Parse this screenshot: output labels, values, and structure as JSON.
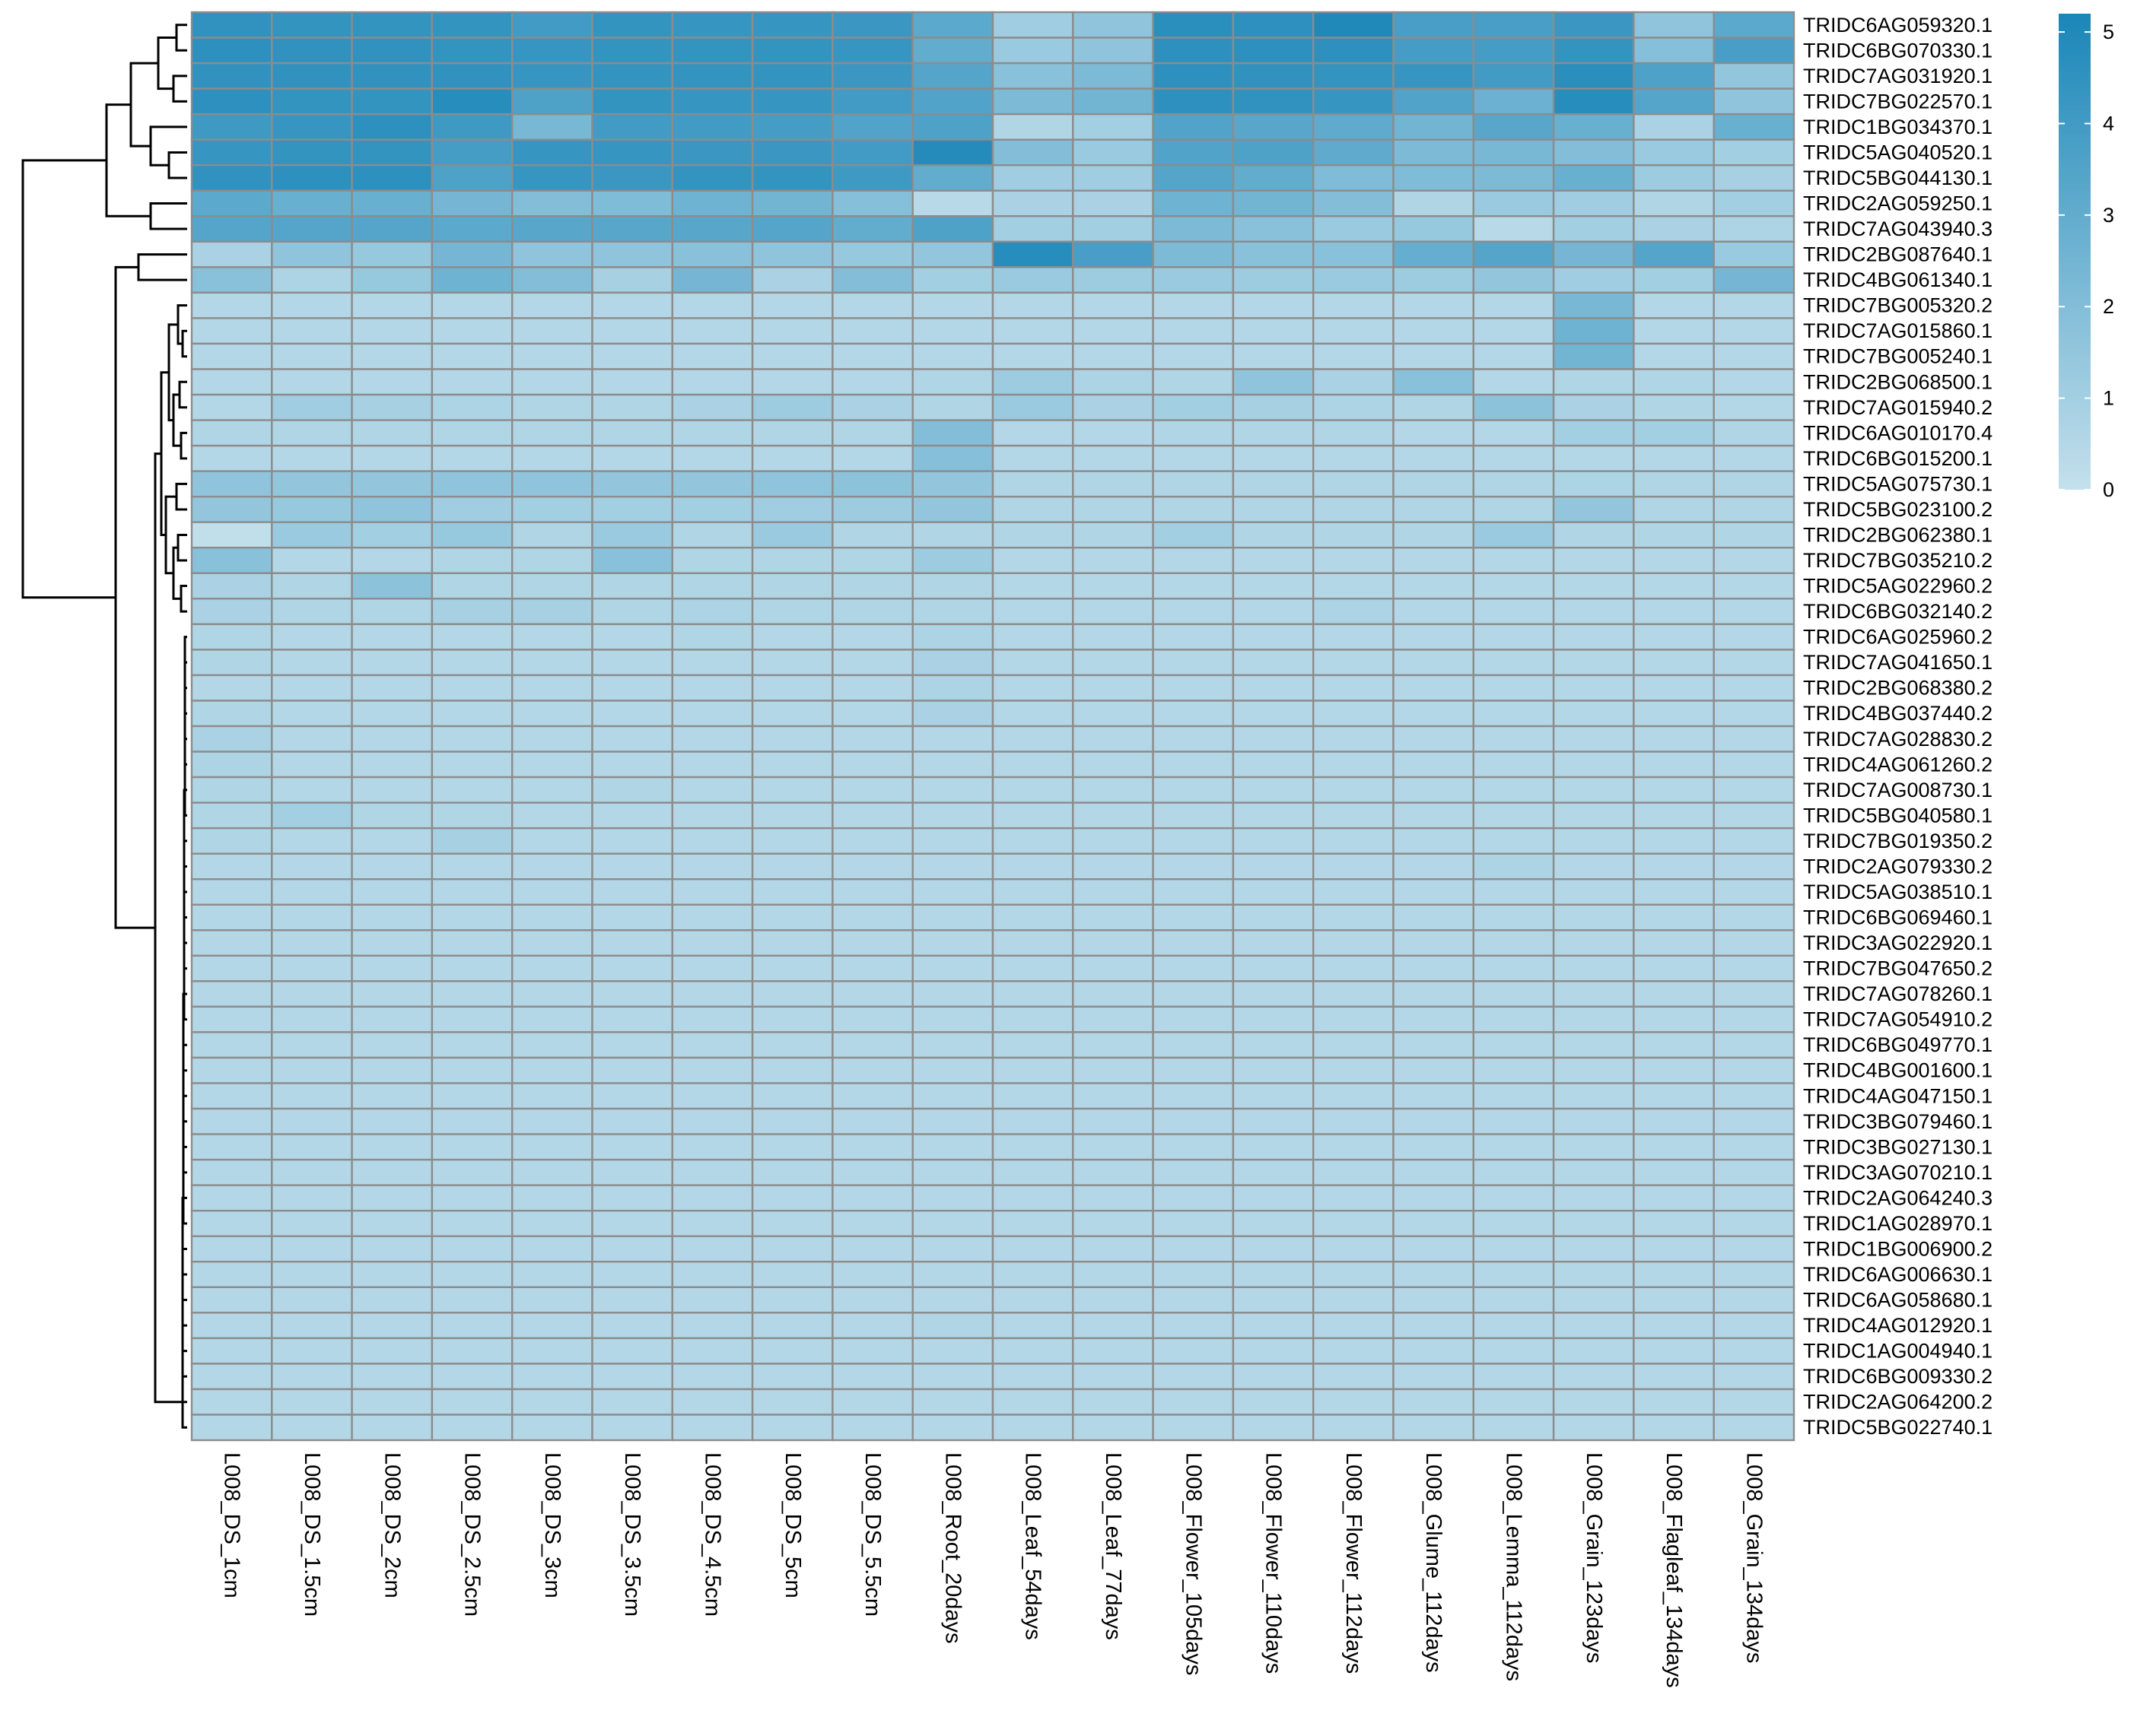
{
  "chart_data": {
    "type": "heatmap",
    "title": "",
    "xlabel": "",
    "ylabel": "",
    "columns": [
      "L008_DS_1cm",
      "L008_DS_1.5cm",
      "L008_DS_2cm",
      "L008_DS_2.5cm",
      "L008_DS_3cm",
      "L008_DS_3.5cm",
      "L008_DS_4.5cm",
      "L008_DS_5cm",
      "L008_DS_5.5cm",
      "L008_Root_20days",
      "L008_Leaf_54days",
      "L008_Leaf_77days",
      "L008_Flower_105days",
      "L008_Flower_110days",
      "L008_Flower_112days",
      "L008_Glume_112days",
      "L008_Lemma_112days",
      "L008_Grain_123days",
      "L008_Flagleaf_134days",
      "L008_Grain_134days"
    ],
    "rows": [
      "TRIDC6AG059320.1",
      "TRIDC6BG070330.1",
      "TRIDC7AG031920.1",
      "TRIDC7BG022570.1",
      "TRIDC1BG034370.1",
      "TRIDC5AG040520.1",
      "TRIDC5BG044130.1",
      "TRIDC2AG059250.1",
      "TRIDC7AG043940.3",
      "TRIDC2BG087640.1",
      "TRIDC4BG061340.1",
      "TRIDC7BG005320.2",
      "TRIDC7AG015860.1",
      "TRIDC7BG005240.1",
      "TRIDC2BG068500.1",
      "TRIDC7AG015940.2",
      "TRIDC6AG010170.4",
      "TRIDC6BG015200.1",
      "TRIDC5AG075730.1",
      "TRIDC5BG023100.2",
      "TRIDC2BG062380.1",
      "TRIDC7BG035210.2",
      "TRIDC5AG022960.2",
      "TRIDC6BG032140.2",
      "TRIDC6AG025960.2",
      "TRIDC7AG041650.1",
      "TRIDC2BG068380.2",
      "TRIDC4BG037440.2",
      "TRIDC7AG028830.2",
      "TRIDC4AG061260.2",
      "TRIDC7AG008730.1",
      "TRIDC5BG040580.1",
      "TRIDC7BG019350.2",
      "TRIDC2AG079330.2",
      "TRIDC5AG038510.1",
      "TRIDC6BG069460.1",
      "TRIDC3AG022920.1",
      "TRIDC7BG047650.2",
      "TRIDC7AG078260.1",
      "TRIDC7AG054910.2",
      "TRIDC6BG049770.1",
      "TRIDC4BG001600.1",
      "TRIDC4AG047150.1",
      "TRIDC3BG079460.1",
      "TRIDC3BG027130.1",
      "TRIDC3AG070210.1",
      "TRIDC2AG064240.3",
      "TRIDC1AG028970.1",
      "TRIDC1BG006900.2",
      "TRIDC6AG006630.1",
      "TRIDC6AG058680.1",
      "TRIDC4AG012920.1",
      "TRIDC1AG004940.1",
      "TRIDC6BG009330.2",
      "TRIDC2AG064200.2",
      "TRIDC5BG022740.1"
    ],
    "values": [
      [
        4.5,
        4.4,
        4.4,
        4.4,
        4.0,
        4.4,
        4.3,
        4.3,
        4.2,
        3.2,
        1.1,
        1.6,
        4.7,
        4.6,
        5.0,
        3.8,
        3.8,
        4.2,
        1.6,
        3.2
      ],
      [
        4.6,
        4.5,
        4.5,
        4.4,
        4.3,
        4.4,
        4.4,
        4.4,
        4.3,
        3.0,
        1.3,
        1.6,
        4.6,
        4.6,
        4.6,
        3.9,
        3.9,
        4.4,
        1.9,
        3.8
      ],
      [
        4.5,
        4.5,
        4.5,
        4.5,
        4.3,
        4.4,
        4.4,
        4.4,
        4.2,
        3.4,
        1.8,
        2.2,
        4.6,
        4.5,
        4.4,
        4.3,
        4.0,
        4.7,
        3.6,
        1.5
      ],
      [
        4.6,
        4.4,
        4.4,
        4.8,
        3.6,
        4.4,
        4.3,
        4.3,
        4.0,
        3.5,
        2.2,
        2.5,
        4.6,
        4.5,
        4.3,
        3.5,
        2.7,
        4.8,
        3.4,
        1.6
      ],
      [
        4.1,
        4.3,
        4.6,
        4.1,
        2.3,
        4.0,
        4.0,
        3.9,
        3.5,
        3.6,
        0.6,
        1.0,
        3.5,
        3.3,
        3.1,
        2.5,
        3.3,
        2.8,
        0.8,
        2.8
      ],
      [
        4.3,
        4.4,
        4.4,
        3.9,
        4.3,
        4.3,
        4.2,
        4.2,
        4.0,
        4.9,
        2.0,
        1.3,
        3.5,
        3.6,
        3.1,
        2.2,
        2.3,
        2.0,
        1.3,
        1.0
      ],
      [
        4.5,
        4.6,
        4.6,
        3.6,
        4.3,
        4.2,
        4.4,
        4.4,
        4.1,
        3.0,
        1.1,
        1.1,
        3.4,
        3.0,
        2.1,
        2.1,
        2.2,
        2.8,
        1.2,
        0.9
      ],
      [
        3.2,
        2.8,
        2.8,
        2.4,
        2.0,
        2.1,
        2.6,
        2.5,
        1.9,
        0.4,
        0.8,
        0.8,
        2.6,
        2.5,
        2.0,
        0.6,
        1.3,
        1.1,
        0.6,
        1.0
      ],
      [
        3.4,
        3.4,
        3.4,
        3.2,
        3.3,
        3.3,
        3.3,
        3.4,
        3.0,
        3.6,
        1.0,
        1.0,
        2.2,
        1.8,
        1.3,
        1.4,
        0.4,
        1.0,
        0.8,
        0.7
      ],
      [
        0.8,
        1.6,
        1.4,
        2.4,
        1.6,
        1.6,
        1.8,
        1.6,
        1.4,
        1.5,
        4.8,
        3.8,
        2.2,
        1.8,
        1.8,
        2.9,
        3.4,
        2.4,
        3.4,
        1.3
      ],
      [
        1.8,
        0.7,
        1.4,
        2.6,
        2.0,
        0.9,
        2.4,
        0.8,
        2.0,
        1.0,
        1.3,
        1.2,
        1.3,
        1.2,
        1.3,
        1.2,
        1.5,
        1.1,
        1.0,
        2.4
      ],
      [
        0.5,
        0.5,
        0.5,
        0.5,
        0.5,
        0.5,
        0.5,
        0.5,
        0.5,
        0.5,
        0.5,
        0.5,
        0.5,
        0.5,
        0.5,
        0.5,
        0.5,
        2.3,
        0.5,
        0.5
      ],
      [
        0.5,
        0.5,
        0.5,
        0.5,
        0.5,
        0.5,
        0.5,
        0.5,
        0.5,
        0.5,
        0.5,
        0.5,
        0.5,
        0.5,
        0.5,
        0.5,
        0.5,
        2.6,
        0.5,
        0.5
      ],
      [
        0.5,
        0.5,
        0.5,
        0.5,
        0.5,
        0.5,
        0.5,
        0.5,
        0.5,
        0.5,
        0.5,
        0.5,
        0.5,
        0.5,
        0.5,
        0.5,
        0.5,
        2.5,
        0.5,
        0.5
      ],
      [
        0.5,
        0.5,
        0.5,
        0.5,
        0.5,
        0.5,
        0.5,
        0.5,
        0.5,
        0.6,
        1.2,
        0.7,
        0.6,
        1.6,
        0.8,
        1.8,
        0.5,
        0.6,
        0.6,
        0.5
      ],
      [
        0.5,
        1.1,
        0.9,
        0.7,
        0.6,
        0.6,
        0.8,
        1.2,
        0.8,
        0.6,
        1.3,
        0.8,
        1.0,
        0.9,
        0.7,
        0.6,
        1.7,
        0.8,
        0.6,
        0.5
      ],
      [
        0.6,
        0.6,
        0.6,
        0.6,
        0.6,
        0.6,
        0.6,
        0.6,
        0.6,
        2.0,
        0.5,
        0.5,
        0.6,
        0.6,
        0.6,
        0.5,
        0.5,
        1.0,
        1.0,
        0.6
      ],
      [
        0.5,
        0.5,
        0.5,
        0.5,
        0.5,
        0.5,
        0.5,
        0.5,
        0.5,
        1.9,
        0.5,
        0.5,
        0.5,
        0.5,
        0.5,
        0.5,
        0.5,
        0.5,
        0.5,
        0.5
      ],
      [
        1.6,
        1.5,
        1.5,
        1.6,
        1.6,
        1.5,
        1.5,
        1.6,
        1.7,
        1.5,
        0.6,
        0.6,
        0.6,
        0.6,
        0.6,
        0.6,
        0.6,
        0.7,
        0.6,
        0.6
      ],
      [
        1.5,
        1.4,
        1.6,
        1.1,
        1.0,
        1.0,
        1.0,
        1.1,
        1.2,
        1.5,
        0.6,
        0.6,
        0.6,
        0.6,
        0.6,
        0.6,
        0.6,
        1.5,
        0.6,
        0.6
      ],
      [
        0.1,
        1.3,
        1.0,
        1.4,
        0.6,
        1.3,
        0.6,
        1.3,
        0.6,
        0.6,
        0.6,
        0.6,
        1.0,
        0.6,
        0.6,
        0.6,
        1.3,
        0.6,
        0.6,
        0.6
      ],
      [
        1.8,
        0.5,
        0.5,
        0.6,
        0.6,
        1.8,
        0.6,
        0.6,
        0.6,
        1.2,
        0.5,
        0.5,
        0.5,
        0.5,
        0.5,
        0.5,
        0.5,
        0.5,
        0.5,
        0.5
      ],
      [
        0.8,
        0.6,
        1.7,
        0.6,
        0.6,
        0.6,
        0.6,
        0.6,
        0.6,
        0.6,
        0.5,
        0.5,
        0.5,
        0.5,
        0.5,
        0.5,
        0.5,
        0.5,
        0.5,
        0.5
      ],
      [
        0.8,
        0.6,
        0.6,
        0.9,
        0.9,
        0.6,
        0.7,
        0.6,
        0.6,
        0.6,
        0.5,
        0.5,
        0.5,
        0.5,
        0.7,
        0.5,
        0.5,
        0.5,
        0.5,
        0.5
      ],
      [
        0.6,
        0.5,
        0.5,
        0.5,
        0.5,
        0.5,
        0.6,
        0.5,
        0.5,
        0.7,
        0.5,
        0.5,
        0.5,
        0.5,
        0.5,
        0.5,
        0.5,
        0.5,
        0.5,
        0.5
      ],
      [
        0.6,
        0.5,
        0.5,
        0.5,
        0.5,
        0.5,
        0.5,
        0.5,
        0.5,
        0.8,
        0.5,
        0.5,
        0.5,
        0.5,
        0.5,
        0.5,
        0.5,
        0.5,
        0.5,
        0.5
      ],
      [
        0.5,
        0.5,
        0.5,
        0.5,
        0.5,
        0.5,
        0.5,
        0.5,
        0.5,
        0.7,
        0.5,
        0.5,
        0.5,
        0.5,
        0.5,
        0.5,
        0.5,
        0.5,
        0.5,
        0.5
      ],
      [
        0.6,
        0.5,
        0.5,
        0.5,
        0.5,
        0.5,
        0.5,
        0.5,
        0.5,
        0.8,
        0.5,
        0.5,
        0.5,
        0.5,
        0.5,
        0.5,
        0.5,
        0.5,
        0.5,
        0.5
      ],
      [
        0.8,
        0.5,
        0.5,
        0.5,
        0.5,
        0.5,
        0.5,
        0.5,
        0.5,
        0.5,
        0.5,
        0.5,
        0.5,
        0.5,
        0.5,
        0.5,
        0.5,
        0.5,
        0.5,
        0.5
      ],
      [
        0.7,
        0.5,
        0.5,
        0.5,
        0.5,
        0.5,
        0.5,
        0.5,
        0.5,
        0.5,
        0.5,
        0.5,
        0.5,
        0.5,
        0.5,
        0.5,
        0.5,
        0.5,
        0.5,
        0.5
      ],
      [
        0.6,
        0.5,
        0.5,
        0.5,
        0.5,
        0.6,
        0.5,
        0.5,
        0.5,
        0.5,
        0.5,
        0.5,
        0.5,
        0.5,
        0.5,
        0.5,
        0.5,
        0.5,
        0.5,
        0.5
      ],
      [
        0.6,
        1.0,
        0.6,
        0.6,
        0.5,
        0.5,
        0.5,
        0.5,
        0.5,
        0.5,
        0.5,
        0.5,
        0.5,
        0.5,
        0.5,
        0.5,
        0.5,
        0.5,
        0.5,
        0.5
      ],
      [
        0.6,
        0.5,
        0.5,
        0.9,
        0.5,
        0.5,
        0.5,
        0.5,
        0.5,
        0.5,
        0.5,
        0.5,
        0.5,
        0.5,
        0.5,
        0.5,
        0.5,
        0.5,
        0.5,
        0.5
      ],
      [
        0.5,
        0.5,
        0.5,
        0.5,
        0.5,
        0.5,
        0.5,
        0.5,
        0.5,
        0.5,
        0.5,
        0.5,
        0.5,
        0.5,
        0.5,
        0.5,
        0.7,
        0.5,
        0.5,
        0.5
      ],
      [
        0.5,
        0.5,
        0.5,
        0.5,
        0.5,
        0.5,
        0.5,
        0.5,
        0.5,
        0.5,
        0.5,
        0.5,
        0.5,
        0.5,
        0.5,
        0.5,
        0.5,
        0.5,
        0.5,
        0.5
      ],
      [
        0.5,
        0.5,
        0.5,
        0.5,
        0.5,
        0.5,
        0.5,
        0.5,
        0.5,
        0.5,
        0.5,
        0.5,
        0.5,
        0.5,
        0.5,
        0.5,
        0.5,
        0.5,
        0.5,
        0.5
      ],
      [
        0.5,
        0.5,
        0.5,
        0.5,
        0.5,
        0.5,
        0.5,
        0.5,
        0.5,
        0.5,
        0.5,
        0.5,
        0.5,
        0.5,
        0.5,
        0.5,
        0.5,
        0.5,
        0.5,
        0.5
      ],
      [
        0.5,
        0.5,
        0.5,
        0.5,
        0.5,
        0.5,
        0.5,
        0.5,
        0.5,
        0.5,
        0.5,
        0.5,
        0.5,
        0.5,
        0.5,
        0.5,
        0.5,
        0.5,
        0.5,
        0.5
      ],
      [
        0.5,
        0.5,
        0.5,
        0.5,
        0.5,
        0.5,
        0.5,
        0.5,
        0.5,
        0.5,
        0.5,
        0.5,
        0.5,
        0.5,
        0.5,
        0.5,
        0.5,
        0.5,
        0.5,
        0.5
      ],
      [
        0.5,
        0.5,
        0.5,
        0.5,
        0.5,
        0.5,
        0.5,
        0.5,
        0.5,
        0.5,
        0.5,
        0.5,
        0.5,
        0.5,
        0.5,
        0.5,
        0.5,
        0.5,
        0.5,
        0.5
      ],
      [
        0.5,
        0.5,
        0.5,
        0.5,
        0.5,
        0.5,
        0.5,
        0.5,
        0.5,
        0.5,
        0.5,
        0.5,
        0.5,
        0.5,
        0.5,
        0.5,
        0.5,
        0.5,
        0.5,
        0.5
      ],
      [
        0.5,
        0.5,
        0.5,
        0.5,
        0.5,
        0.5,
        0.5,
        0.5,
        0.5,
        0.5,
        0.5,
        0.5,
        0.5,
        0.5,
        0.5,
        0.5,
        0.5,
        0.5,
        0.5,
        0.5
      ],
      [
        0.5,
        0.5,
        0.5,
        0.5,
        0.5,
        0.5,
        0.5,
        0.5,
        0.5,
        0.5,
        0.5,
        0.5,
        0.5,
        0.5,
        0.5,
        0.5,
        0.5,
        0.5,
        0.5,
        0.5
      ],
      [
        0.5,
        0.5,
        0.5,
        0.5,
        0.5,
        0.5,
        0.5,
        0.5,
        0.5,
        0.5,
        0.5,
        0.5,
        0.5,
        0.5,
        0.5,
        0.5,
        0.5,
        0.5,
        0.5,
        0.5
      ],
      [
        0.5,
        0.5,
        0.5,
        0.5,
        0.5,
        0.5,
        0.5,
        0.5,
        0.5,
        0.5,
        0.5,
        0.5,
        0.5,
        0.5,
        0.5,
        0.5,
        0.5,
        0.5,
        0.5,
        0.5
      ],
      [
        0.5,
        0.5,
        0.5,
        0.5,
        0.5,
        0.5,
        0.5,
        0.5,
        0.5,
        0.5,
        0.5,
        0.5,
        0.5,
        0.5,
        0.5,
        0.5,
        0.5,
        0.5,
        0.5,
        0.5
      ],
      [
        0.5,
        0.5,
        0.5,
        0.5,
        0.5,
        0.5,
        0.5,
        0.5,
        0.5,
        0.5,
        0.5,
        0.5,
        0.5,
        0.5,
        0.5,
        0.5,
        0.5,
        0.5,
        0.5,
        0.5
      ],
      [
        0.5,
        0.5,
        0.5,
        0.5,
        0.5,
        0.5,
        0.5,
        0.5,
        0.5,
        0.5,
        0.5,
        0.5,
        0.5,
        0.5,
        0.5,
        0.5,
        0.5,
        0.5,
        0.5,
        0.5
      ],
      [
        0.5,
        0.5,
        0.5,
        0.5,
        0.5,
        0.5,
        0.5,
        0.5,
        0.5,
        0.5,
        0.5,
        0.5,
        0.5,
        0.5,
        0.5,
        0.5,
        0.5,
        0.5,
        0.5,
        0.5
      ],
      [
        0.5,
        0.5,
        0.5,
        0.5,
        0.5,
        0.5,
        0.5,
        0.5,
        0.5,
        0.5,
        0.5,
        0.5,
        0.5,
        0.5,
        0.5,
        0.5,
        0.5,
        0.5,
        0.5,
        0.5
      ],
      [
        0.5,
        0.5,
        0.5,
        0.5,
        0.5,
        0.5,
        0.5,
        0.5,
        0.5,
        0.5,
        0.5,
        0.5,
        0.5,
        0.5,
        0.5,
        0.5,
        0.5,
        0.5,
        0.5,
        0.5
      ],
      [
        0.5,
        0.5,
        0.5,
        0.5,
        0.5,
        0.5,
        0.5,
        0.5,
        0.5,
        0.6,
        0.5,
        0.5,
        0.5,
        0.5,
        0.5,
        0.5,
        0.5,
        0.5,
        0.5,
        0.5
      ],
      [
        0.5,
        0.5,
        0.5,
        0.5,
        0.5,
        0.5,
        0.5,
        0.5,
        0.5,
        0.5,
        0.5,
        0.5,
        0.5,
        0.5,
        0.5,
        0.5,
        0.5,
        0.5,
        0.5,
        0.5
      ],
      [
        0.5,
        0.5,
        0.5,
        0.5,
        0.5,
        0.5,
        0.5,
        0.5,
        0.5,
        0.5,
        0.5,
        0.5,
        0.5,
        0.5,
        0.5,
        0.5,
        0.5,
        0.5,
        0.5,
        0.5
      ],
      [
        0.5,
        0.5,
        0.5,
        0.5,
        0.5,
        0.5,
        0.5,
        0.5,
        0.5,
        0.5,
        0.5,
        0.5,
        0.5,
        0.5,
        0.5,
        0.5,
        0.5,
        0.5,
        0.5,
        0.5
      ],
      [
        0.5,
        0.5,
        0.5,
        0.5,
        0.5,
        0.5,
        0.5,
        0.5,
        0.5,
        0.5,
        0.5,
        0.5,
        0.5,
        0.5,
        0.5,
        0.5,
        0.5,
        0.5,
        0.5,
        0.5
      ]
    ],
    "color_scale": {
      "min": 0,
      "max": 5.2,
      "low_color": "#c4e0ec",
      "high_color": "#1a86b8",
      "ticks": [
        0,
        1,
        2,
        3,
        4,
        5
      ],
      "tick_labels": [
        "0",
        "1",
        "2",
        "3",
        "4",
        "5"
      ],
      "placement": "right"
    },
    "cell_border_color": "#8c8c8c",
    "row_dendrogram": "left",
    "legend": "right"
  },
  "colors": {
    "background": "#ffffff",
    "text": "#000000",
    "dendrogram": "#000000"
  }
}
